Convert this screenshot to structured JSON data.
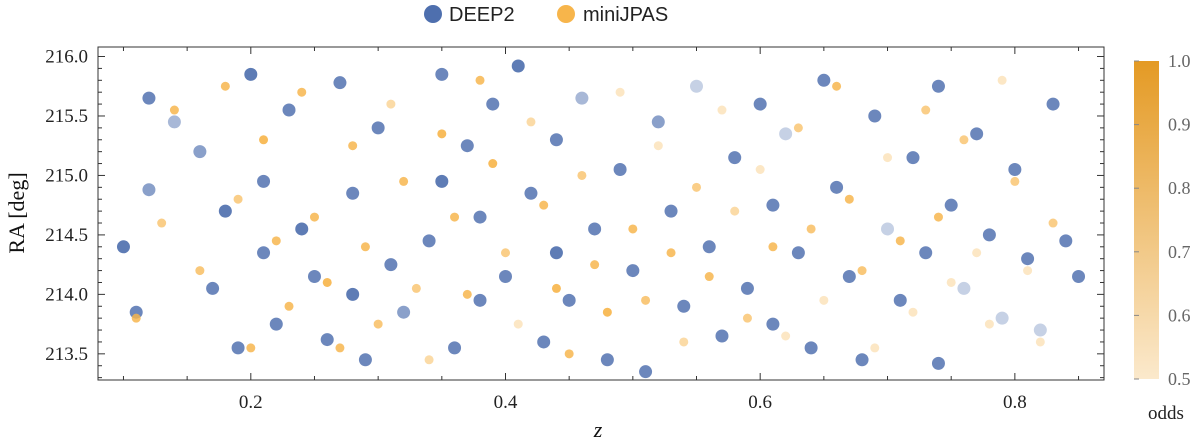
{
  "chart_data": {
    "type": "scatter",
    "title": "",
    "xlabel": "z",
    "ylabel": "RA [deg]",
    "xlim": [
      0.08,
      0.87
    ],
    "ylim": [
      213.28,
      216.08
    ],
    "xticks": [
      0.2,
      0.4,
      0.6,
      0.8
    ],
    "xtick_labels": [
      "0.2",
      "0.4",
      "0.6",
      "0.8"
    ],
    "yticks": [
      213.5,
      214.0,
      214.5,
      215.0,
      215.5,
      216.0
    ],
    "ytick_labels": [
      "213.5",
      "214.0",
      "214.5",
      "215.0",
      "215.5",
      "216.0"
    ],
    "legend": {
      "placement": "top-center",
      "entries": [
        {
          "name": "DEEP2",
          "color": "#4e6fae"
        },
        {
          "name": "miniJPAS",
          "color": "#f7b54b"
        }
      ]
    },
    "colorbar": {
      "title": "odds",
      "range": [
        0.5,
        1.0
      ],
      "ticks": [
        0.5,
        0.6,
        0.7,
        0.8,
        0.9,
        1.0
      ],
      "tick_labels": [
        "0.5",
        "0.6",
        "0.7",
        "0.8",
        "0.9",
        "1.0"
      ],
      "color_low": "#fbe9cc",
      "color_high": "#e49a24"
    },
    "series": [
      {
        "name": "DEEP2",
        "color": "#4e6fae",
        "points": [
          [
            0.1,
            214.4,
            0.95
          ],
          [
            0.11,
            213.85,
            0.9
          ],
          [
            0.12,
            214.88,
            0.8
          ],
          [
            0.12,
            215.65,
            0.9
          ],
          [
            0.14,
            215.45,
            0.7
          ],
          [
            0.16,
            215.2,
            0.8
          ],
          [
            0.17,
            214.05,
            0.9
          ],
          [
            0.18,
            214.7,
            0.95
          ],
          [
            0.19,
            213.55,
            0.9
          ],
          [
            0.2,
            215.85,
            0.95
          ],
          [
            0.21,
            214.35,
            0.9
          ],
          [
            0.21,
            214.95,
            0.9
          ],
          [
            0.22,
            213.75,
            0.9
          ],
          [
            0.23,
            215.55,
            0.9
          ],
          [
            0.24,
            214.55,
            0.95
          ],
          [
            0.25,
            214.15,
            0.9
          ],
          [
            0.26,
            213.62,
            0.9
          ],
          [
            0.27,
            215.78,
            0.9
          ],
          [
            0.28,
            214.85,
            0.9
          ],
          [
            0.28,
            214.0,
            0.95
          ],
          [
            0.29,
            213.45,
            0.9
          ],
          [
            0.3,
            215.4,
            0.9
          ],
          [
            0.31,
            214.25,
            0.9
          ],
          [
            0.32,
            213.85,
            0.8
          ],
          [
            0.34,
            214.45,
            0.9
          ],
          [
            0.35,
            215.85,
            0.9
          ],
          [
            0.35,
            214.95,
            0.95
          ],
          [
            0.36,
            213.55,
            0.9
          ],
          [
            0.37,
            215.25,
            0.9
          ],
          [
            0.38,
            214.65,
            0.9
          ],
          [
            0.38,
            213.95,
            0.9
          ],
          [
            0.39,
            215.6,
            0.9
          ],
          [
            0.4,
            214.15,
            0.9
          ],
          [
            0.41,
            215.92,
            0.95
          ],
          [
            0.42,
            214.85,
            0.9
          ],
          [
            0.43,
            213.6,
            0.9
          ],
          [
            0.44,
            215.3,
            0.9
          ],
          [
            0.44,
            214.35,
            0.95
          ],
          [
            0.45,
            213.95,
            0.9
          ],
          [
            0.46,
            215.65,
            0.7
          ],
          [
            0.47,
            214.55,
            0.9
          ],
          [
            0.48,
            213.45,
            0.9
          ],
          [
            0.49,
            215.05,
            0.9
          ],
          [
            0.5,
            214.2,
            0.9
          ],
          [
            0.51,
            213.35,
            0.9
          ],
          [
            0.52,
            215.45,
            0.8
          ],
          [
            0.53,
            214.7,
            0.9
          ],
          [
            0.54,
            213.9,
            0.9
          ],
          [
            0.55,
            215.75,
            0.6
          ],
          [
            0.56,
            214.4,
            0.9
          ],
          [
            0.57,
            213.65,
            0.9
          ],
          [
            0.58,
            215.15,
            0.9
          ],
          [
            0.59,
            214.05,
            0.9
          ],
          [
            0.6,
            215.6,
            0.9
          ],
          [
            0.61,
            214.75,
            0.9
          ],
          [
            0.61,
            213.75,
            0.9
          ],
          [
            0.62,
            215.35,
            0.6
          ],
          [
            0.63,
            214.35,
            0.9
          ],
          [
            0.64,
            213.55,
            0.9
          ],
          [
            0.65,
            215.8,
            0.9
          ],
          [
            0.66,
            214.9,
            0.9
          ],
          [
            0.67,
            214.15,
            0.9
          ],
          [
            0.68,
            213.45,
            0.9
          ],
          [
            0.69,
            215.5,
            0.9
          ],
          [
            0.7,
            214.55,
            0.6
          ],
          [
            0.71,
            213.95,
            0.9
          ],
          [
            0.72,
            215.15,
            0.9
          ],
          [
            0.73,
            214.35,
            0.9
          ],
          [
            0.74,
            215.75,
            0.9
          ],
          [
            0.74,
            213.42,
            0.9
          ],
          [
            0.75,
            214.75,
            0.9
          ],
          [
            0.76,
            214.05,
            0.6
          ],
          [
            0.77,
            215.35,
            0.9
          ],
          [
            0.78,
            214.5,
            0.9
          ],
          [
            0.79,
            213.8,
            0.6
          ],
          [
            0.8,
            215.05,
            0.9
          ],
          [
            0.81,
            214.3,
            0.9
          ],
          [
            0.82,
            213.7,
            0.6
          ],
          [
            0.83,
            215.6,
            0.9
          ],
          [
            0.84,
            214.45,
            0.9
          ],
          [
            0.85,
            214.15,
            0.9
          ]
        ]
      },
      {
        "name": "miniJPAS",
        "color": "#f7b54b",
        "points": [
          [
            0.11,
            213.8,
            0.9
          ],
          [
            0.13,
            214.6,
            0.8
          ],
          [
            0.14,
            215.55,
            0.9
          ],
          [
            0.16,
            214.2,
            0.85
          ],
          [
            0.18,
            215.75,
            0.9
          ],
          [
            0.19,
            214.8,
            0.8
          ],
          [
            0.2,
            213.55,
            0.9
          ],
          [
            0.21,
            215.3,
            0.95
          ],
          [
            0.22,
            214.45,
            0.9
          ],
          [
            0.23,
            213.9,
            0.9
          ],
          [
            0.24,
            215.7,
            0.9
          ],
          [
            0.25,
            214.65,
            0.9
          ],
          [
            0.26,
            214.1,
            0.95
          ],
          [
            0.27,
            213.55,
            0.9
          ],
          [
            0.28,
            215.25,
            0.9
          ],
          [
            0.29,
            214.4,
            0.9
          ],
          [
            0.3,
            213.75,
            0.85
          ],
          [
            0.31,
            215.6,
            0.7
          ],
          [
            0.32,
            214.95,
            0.9
          ],
          [
            0.33,
            214.05,
            0.8
          ],
          [
            0.34,
            213.45,
            0.7
          ],
          [
            0.35,
            215.35,
            0.95
          ],
          [
            0.36,
            214.65,
            0.9
          ],
          [
            0.37,
            214.0,
            0.9
          ],
          [
            0.38,
            215.8,
            0.9
          ],
          [
            0.39,
            215.1,
            0.95
          ],
          [
            0.4,
            214.35,
            0.8
          ],
          [
            0.41,
            213.75,
            0.6
          ],
          [
            0.42,
            215.45,
            0.7
          ],
          [
            0.43,
            214.75,
            0.9
          ],
          [
            0.44,
            214.05,
            0.95
          ],
          [
            0.45,
            213.5,
            0.9
          ],
          [
            0.46,
            215.0,
            0.8
          ],
          [
            0.47,
            214.25,
            0.9
          ],
          [
            0.48,
            213.85,
            0.95
          ],
          [
            0.49,
            215.7,
            0.6
          ],
          [
            0.5,
            214.55,
            0.9
          ],
          [
            0.51,
            213.95,
            0.85
          ],
          [
            0.52,
            215.25,
            0.6
          ],
          [
            0.53,
            214.35,
            0.9
          ],
          [
            0.54,
            213.6,
            0.7
          ],
          [
            0.55,
            214.9,
            0.8
          ],
          [
            0.56,
            214.15,
            0.9
          ],
          [
            0.57,
            215.55,
            0.6
          ],
          [
            0.58,
            214.7,
            0.7
          ],
          [
            0.59,
            213.8,
            0.8
          ],
          [
            0.6,
            215.05,
            0.6
          ],
          [
            0.61,
            214.4,
            0.9
          ],
          [
            0.62,
            213.65,
            0.6
          ],
          [
            0.63,
            215.4,
            0.8
          ],
          [
            0.64,
            214.55,
            0.85
          ],
          [
            0.65,
            213.95,
            0.6
          ],
          [
            0.66,
            215.75,
            0.9
          ],
          [
            0.67,
            214.8,
            0.9
          ],
          [
            0.68,
            214.2,
            0.85
          ],
          [
            0.69,
            213.55,
            0.6
          ],
          [
            0.7,
            215.15,
            0.6
          ],
          [
            0.71,
            214.45,
            0.9
          ],
          [
            0.72,
            213.85,
            0.6
          ],
          [
            0.73,
            215.55,
            0.8
          ],
          [
            0.74,
            214.65,
            0.9
          ],
          [
            0.75,
            214.1,
            0.6
          ],
          [
            0.76,
            215.3,
            0.8
          ],
          [
            0.77,
            214.35,
            0.6
          ],
          [
            0.78,
            213.75,
            0.6
          ],
          [
            0.79,
            215.8,
            0.6
          ],
          [
            0.8,
            214.95,
            0.8
          ],
          [
            0.81,
            214.2,
            0.6
          ],
          [
            0.82,
            213.6,
            0.6
          ],
          [
            0.83,
            214.6,
            0.8
          ]
        ]
      }
    ]
  }
}
